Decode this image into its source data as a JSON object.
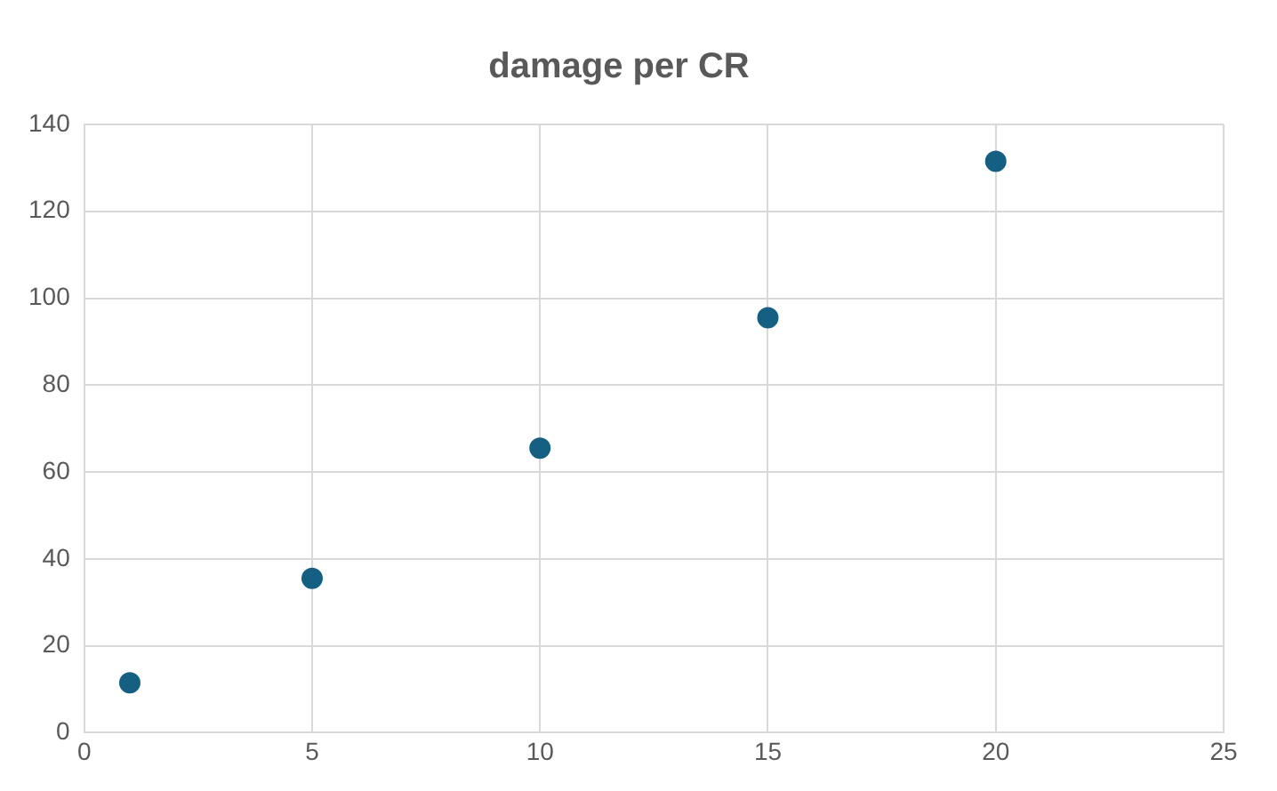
{
  "chart_data": {
    "type": "scatter",
    "title": "damage per CR",
    "x": [
      1,
      5,
      10,
      15,
      20
    ],
    "series": [
      {
        "color": "#156082",
        "values": [
          11.5,
          35.5,
          65.5,
          95.5,
          131.5
        ]
      }
    ],
    "xlim": [
      0,
      25
    ],
    "xticks": [
      0,
      5,
      10,
      15,
      20,
      25
    ],
    "ylim": [
      0,
      140
    ],
    "yticks": [
      0,
      20,
      40,
      60,
      80,
      100,
      120,
      140
    ],
    "grid": true,
    "legend": false,
    "marker": "circle"
  }
}
